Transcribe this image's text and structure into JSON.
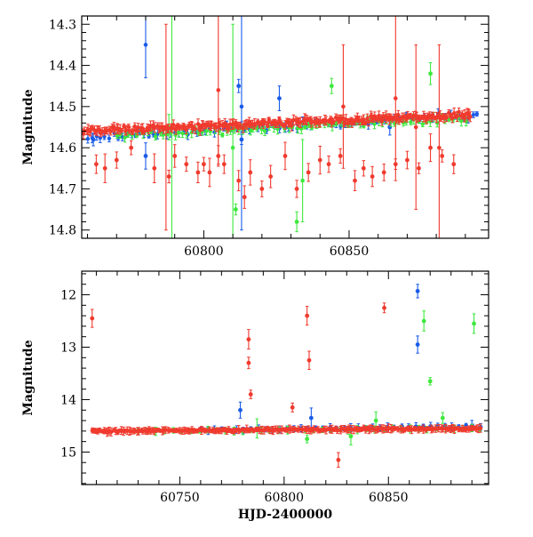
{
  "colors": {
    "red": "#f03a2e",
    "blue": "#1a5ce8",
    "green": "#3ee83e",
    "axes": "#000000",
    "background": "#ffffff"
  },
  "chart_data": [
    {
      "type": "scatter",
      "title": "",
      "xlabel": "",
      "ylabel": "Magnitude",
      "xlim": [
        60758,
        60898
      ],
      "ylim": [
        14.82,
        14.28
      ],
      "y_inverted": true,
      "x_ticks": [
        60800,
        60850
      ],
      "y_ticks": [
        14.3,
        14.4,
        14.5,
        14.6,
        14.7,
        14.8
      ],
      "x_tick_labels": [
        "60800",
        "60850"
      ],
      "y_tick_labels": [
        "14.3",
        "14.4",
        "14.5",
        "14.6",
        "14.7",
        "14.8"
      ],
      "grid": false,
      "legend": "none",
      "series": [
        {
          "color": "#f03a2e",
          "marker": "circle+errorbar",
          "baseline_from": [
            60758,
            14.56
          ],
          "baseline_to": [
            60892,
            14.52
          ],
          "outliers": [
            [
              60763,
              14.64
            ],
            [
              60766,
              14.65
            ],
            [
              60770,
              14.63
            ],
            [
              60775,
              14.6
            ],
            [
              60783,
              14.65
            ],
            [
              60788,
              14.67
            ],
            [
              60790,
              14.62
            ],
            [
              60794,
              14.64
            ],
            [
              60798,
              14.66
            ],
            [
              60800,
              14.64
            ],
            [
              60802,
              14.66
            ],
            [
              60805,
              14.62
            ],
            [
              60807,
              14.64
            ],
            [
              60812,
              14.68
            ],
            [
              60814,
              14.72
            ],
            [
              60816,
              14.66
            ],
            [
              60820,
              14.7
            ],
            [
              60823,
              14.67
            ],
            [
              60828,
              14.62
            ],
            [
              60832,
              14.7
            ],
            [
              60836,
              14.66
            ],
            [
              60840,
              14.63
            ],
            [
              60843,
              14.64
            ],
            [
              60847,
              14.62
            ],
            [
              60852,
              14.68
            ],
            [
              60855,
              14.65
            ],
            [
              60858,
              14.67
            ],
            [
              60862,
              14.66
            ],
            [
              60866,
              14.64
            ],
            [
              60870,
              14.63
            ],
            [
              60874,
              14.65
            ],
            [
              60878,
              14.6
            ],
            [
              60882,
              14.62
            ],
            [
              60886,
              14.64
            ]
          ]
        },
        {
          "color": "#1a5ce8",
          "marker": "circle+errorbar",
          "baseline_from": [
            60760,
            14.575
          ],
          "baseline_to": [
            60894,
            14.52
          ],
          "outliers": [
            [
              60762,
              14.58
            ],
            [
              60780,
              14.62
            ],
            [
              60812,
              14.45
            ],
            [
              60813,
              14.58
            ],
            [
              60826,
              14.48
            ],
            [
              60864,
              14.55
            ]
          ]
        },
        {
          "color": "#3ee83e",
          "marker": "circle+errorbar",
          "baseline_from": [
            60770,
            14.57
          ],
          "baseline_to": [
            60890,
            14.53
          ],
          "outliers": [
            [
              60788,
              14.55
            ],
            [
              60811,
              14.75
            ],
            [
              60832,
              14.78
            ],
            [
              60844,
              14.45
            ],
            [
              60878,
              14.42
            ]
          ]
        }
      ]
    },
    {
      "type": "scatter",
      "title": "",
      "xlabel": "HJD-2400000",
      "ylabel": "Magnitude",
      "xlim": [
        60703,
        60898
      ],
      "ylim": [
        15.62,
        11.55
      ],
      "y_inverted": true,
      "x_ticks": [
        60750,
        60800,
        60850
      ],
      "y_ticks": [
        12,
        13,
        14,
        15
      ],
      "x_tick_labels": [
        "60750",
        "60800",
        "60850"
      ],
      "y_tick_labels": [
        "12",
        "13",
        "14",
        "15"
      ],
      "grid": false,
      "legend": "none",
      "series": [
        {
          "color": "#f03a2e",
          "marker": "circle+errorbar",
          "baseline_from": [
            60708,
            14.6
          ],
          "baseline_to": [
            60894,
            14.55
          ],
          "points": [
            [
              60708,
              12.45
            ],
            [
              60783,
              12.85
            ],
            [
              60783,
              13.3
            ],
            [
              60784,
              13.9
            ],
            [
              60811,
              12.4
            ],
            [
              60812,
              13.25
            ],
            [
              60804,
              14.15
            ],
            [
              60826,
              15.15
            ],
            [
              60848,
              12.25
            ]
          ]
        },
        {
          "color": "#1a5ce8",
          "marker": "circle+errorbar",
          "baseline_from": [
            60760,
            14.58
          ],
          "baseline_to": [
            60894,
            14.5
          ],
          "points": [
            [
              60779,
              14.2
            ],
            [
              60813,
              14.35
            ],
            [
              60864,
              11.93
            ],
            [
              60864,
              12.95
            ],
            [
              60890,
              14.5
            ]
          ]
        },
        {
          "color": "#3ee83e",
          "marker": "circle+errorbar",
          "baseline_from": [
            60730,
            14.6
          ],
          "baseline_to": [
            60894,
            14.55
          ],
          "points": [
            [
              60787,
              14.55
            ],
            [
              60811,
              14.75
            ],
            [
              60832,
              14.7
            ],
            [
              60844,
              14.4
            ],
            [
              60867,
              12.5
            ],
            [
              60870,
              13.65
            ],
            [
              60876,
              14.35
            ],
            [
              60891,
              12.55
            ]
          ]
        }
      ]
    }
  ]
}
